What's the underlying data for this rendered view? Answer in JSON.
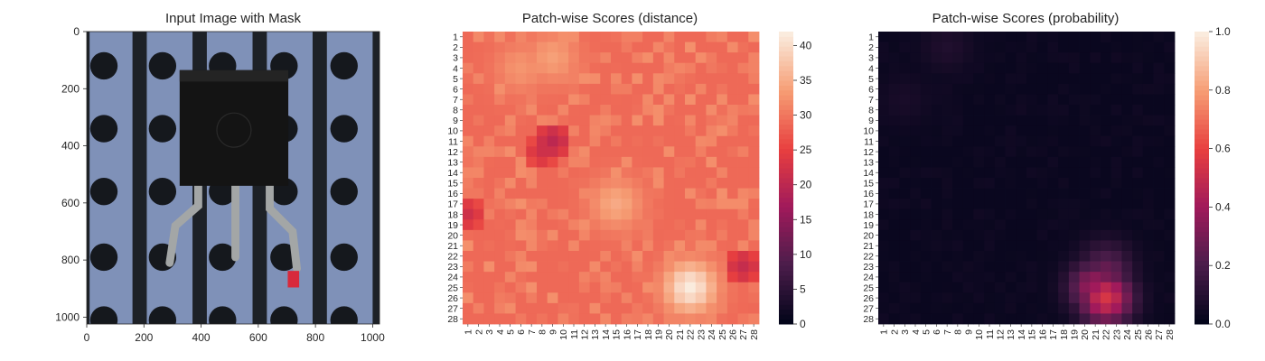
{
  "figure": {
    "titles": [
      "Input Image with Mask",
      "Patch-wise Scores (distance)",
      "Patch-wise Scores (probability)"
    ]
  },
  "image_panel": {
    "x_ticks": [
      "0",
      "200",
      "400",
      "600",
      "800",
      "1000"
    ],
    "y_ticks": [
      "0",
      "200",
      "400",
      "600",
      "800",
      "1000"
    ],
    "colors": {
      "background": "#7f91b8",
      "stripe": "#1d2127",
      "hole": "#15181d",
      "component_body": "#141414",
      "lead": "#a3a6a6",
      "mask": "#d8293b"
    },
    "content": [
      "transistor",
      "metal-leads",
      "mask"
    ]
  },
  "distance_colorbar": {
    "ticks": [
      "0",
      "5",
      "10",
      "15",
      "20",
      "25",
      "30",
      "35",
      "40"
    ]
  },
  "probability_colorbar": {
    "ticks": [
      "0.0",
      "0.2",
      "0.4",
      "0.6",
      "0.8",
      "1.0"
    ]
  },
  "chart_data": [
    {
      "type": "image",
      "title": "Input Image with Mask",
      "xlim": [
        0,
        1024
      ],
      "ylim": [
        1024,
        0
      ],
      "x_ticks": [
        0,
        200,
        400,
        600,
        800,
        1000
      ],
      "y_ticks": [
        0,
        200,
        400,
        600,
        800,
        1000
      ]
    },
    {
      "type": "heatmap",
      "title": "Patch-wise Scores (distance)",
      "rows": 28,
      "cols": 28,
      "tick_labels": [
        "1",
        "2",
        "3",
        "4",
        "5",
        "6",
        "7",
        "8",
        "9",
        "10",
        "11",
        "12",
        "13",
        "14",
        "15",
        "16",
        "17",
        "18",
        "19",
        "20",
        "21",
        "22",
        "23",
        "24",
        "25",
        "26",
        "27",
        "28"
      ],
      "vmin": 0,
      "vmax": 42,
      "base_value": 29,
      "colormap": [
        "#03051a",
        "#4c1d4b",
        "#a11a5b",
        "#e83f3f",
        "#f69c73",
        "#faebdd"
      ],
      "hotspots": [
        {
          "row": 25,
          "col": 22,
          "value": 42
        },
        {
          "row": 17,
          "col": 15,
          "value": 35
        },
        {
          "row": 3,
          "col": 9,
          "value": 34
        },
        {
          "row": 4,
          "col": 6,
          "value": 33
        }
      ],
      "lowspots": [
        {
          "row": 11,
          "col": 9,
          "value": 20
        },
        {
          "row": 12,
          "col": 8,
          "value": 22
        },
        {
          "row": 18,
          "col": 1,
          "value": 22
        },
        {
          "row": 23,
          "col": 27,
          "value": 21
        }
      ],
      "colorbar_ticks": [
        0,
        5,
        10,
        15,
        20,
        25,
        30,
        35,
        40
      ]
    },
    {
      "type": "heatmap",
      "title": "Patch-wise Scores (probability)",
      "rows": 28,
      "cols": 28,
      "tick_labels": [
        "1",
        "2",
        "3",
        "4",
        "5",
        "6",
        "7",
        "8",
        "9",
        "10",
        "11",
        "12",
        "13",
        "14",
        "15",
        "16",
        "17",
        "18",
        "19",
        "20",
        "21",
        "22",
        "23",
        "24",
        "25",
        "26",
        "27",
        "28"
      ],
      "vmin": 0,
      "vmax": 1,
      "base_value": 0.02,
      "colormap": [
        "#03051a",
        "#4c1d4b",
        "#a11a5b",
        "#e83f3f",
        "#f69c73",
        "#faebdd"
      ],
      "hotspots": [
        {
          "row": 26,
          "col": 22,
          "value": 0.55
        },
        {
          "row": 25,
          "col": 21,
          "value": 0.4
        },
        {
          "row": 24,
          "col": 22,
          "value": 0.3
        },
        {
          "row": 23,
          "col": 22,
          "value": 0.22
        },
        {
          "row": 2,
          "col": 7,
          "value": 0.08
        },
        {
          "row": 7,
          "col": 3,
          "value": 0.06
        }
      ],
      "colorbar_ticks": [
        0.0,
        0.2,
        0.4,
        0.6,
        0.8,
        1.0
      ]
    }
  ]
}
